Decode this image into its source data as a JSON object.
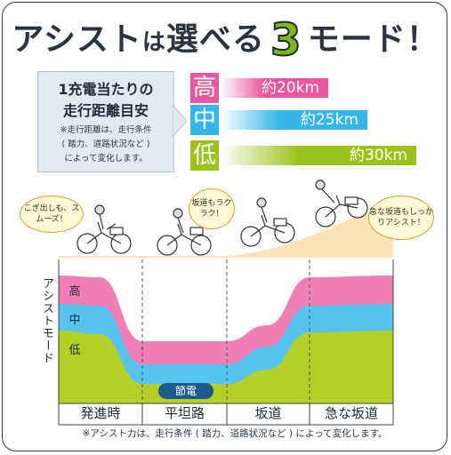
{
  "title": {
    "part1": "アシスト",
    "part2": "は",
    "part3": "選べる",
    "number": "3",
    "part4": "モード！"
  },
  "info": {
    "heading_line1": "1充電当たりの",
    "heading_line2": "走行距離目安",
    "note_line1": "※走行距離は、走行条件",
    "note_line2": "( 踏力、道路状況など )",
    "note_line3": "によって変化します。"
  },
  "ranges": [
    {
      "mode": "高",
      "distance": "約20km",
      "color": "#e9589e",
      "fraction": 0.55
    },
    {
      "mode": "中",
      "distance": "約25km",
      "color": "#35b6e8",
      "fraction": 0.75
    },
    {
      "mode": "低",
      "distance": "約30km",
      "color": "#9cc31c",
      "fraction": 1.0
    }
  ],
  "bubbles": {
    "start": "こぎ出しも、スムーズ！",
    "flat": "坂道もラクラク！",
    "steep": "急な坂道もしっかりアシスト！"
  },
  "chart": {
    "axis_label": "アシストモード",
    "levels": {
      "high": "高",
      "mid": "中",
      "low": "低"
    },
    "eco_badge": "節電",
    "categories": [
      "発進時",
      "平坦路",
      "坂道",
      "急な坂道"
    ],
    "colors": {
      "high": "#f07fb5",
      "mid": "#56c4ee",
      "low": "#b3cf2a",
      "slope": "#fde3b6"
    }
  },
  "footnote": "※アシスト力は、走行条件 ( 踏力、道路状況など ) によって変化します。"
}
